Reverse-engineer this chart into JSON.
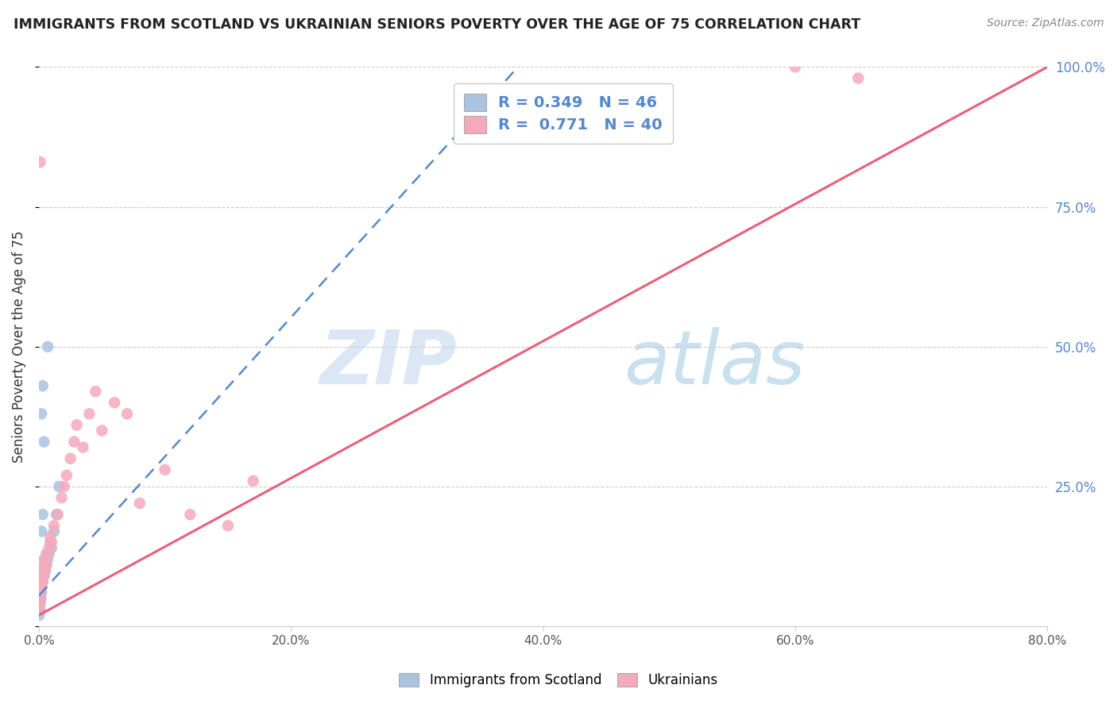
{
  "title": "IMMIGRANTS FROM SCOTLAND VS UKRAINIAN SENIORS POVERTY OVER THE AGE OF 75 CORRELATION CHART",
  "source": "Source: ZipAtlas.com",
  "ylabel": "Seniors Poverty Over the Age of 75",
  "xlim": [
    0,
    0.8
  ],
  "ylim": [
    0,
    1.0
  ],
  "xticks": [
    0.0,
    0.2,
    0.4,
    0.6,
    0.8
  ],
  "xtick_labels": [
    "0.0%",
    "20.0%",
    "40.0%",
    "60.0%",
    "80.0%"
  ],
  "yticks": [
    0.0,
    0.25,
    0.5,
    0.75,
    1.0
  ],
  "ytick_labels": [
    "",
    "25.0%",
    "50.0%",
    "75.0%",
    "100.0%"
  ],
  "blue_color": "#aac4e0",
  "pink_color": "#f5aabb",
  "blue_line_color": "#5588cc",
  "pink_line_color": "#e8607a",
  "watermark_zip": "ZIP",
  "watermark_atlas": "atlas",
  "legend_entries": [
    "R = 0.349   N = 46",
    "R =  0.771   N = 40"
  ],
  "legend_labels": [
    "Immigrants from Scotland",
    "Ukrainians"
  ],
  "scot_x": [
    0.0002,
    0.0003,
    0.0005,
    0.0005,
    0.0007,
    0.0008,
    0.001,
    0.001,
    0.001,
    0.0012,
    0.0013,
    0.0015,
    0.0015,
    0.0017,
    0.0018,
    0.002,
    0.002,
    0.002,
    0.0022,
    0.0022,
    0.0025,
    0.0025,
    0.003,
    0.003,
    0.0032,
    0.0035,
    0.004,
    0.004,
    0.0045,
    0.005,
    0.005,
    0.006,
    0.006,
    0.007,
    0.008,
    0.009,
    0.01,
    0.012,
    0.014,
    0.016,
    0.002,
    0.003,
    0.004,
    0.007,
    0.002,
    0.003
  ],
  "scot_y": [
    0.02,
    0.03,
    0.04,
    0.05,
    0.03,
    0.04,
    0.04,
    0.05,
    0.06,
    0.05,
    0.06,
    0.05,
    0.07,
    0.06,
    0.07,
    0.06,
    0.07,
    0.08,
    0.07,
    0.08,
    0.08,
    0.09,
    0.08,
    0.09,
    0.1,
    0.09,
    0.09,
    0.1,
    0.11,
    0.1,
    0.12,
    0.11,
    0.13,
    0.12,
    0.13,
    0.15,
    0.14,
    0.17,
    0.2,
    0.25,
    0.17,
    0.2,
    0.33,
    0.5,
    0.38,
    0.43
  ],
  "ukr_x": [
    0.0003,
    0.0005,
    0.0007,
    0.001,
    0.001,
    0.0012,
    0.0015,
    0.002,
    0.002,
    0.003,
    0.003,
    0.004,
    0.004,
    0.005,
    0.006,
    0.007,
    0.008,
    0.009,
    0.01,
    0.012,
    0.015,
    0.018,
    0.02,
    0.022,
    0.025,
    0.028,
    0.03,
    0.035,
    0.04,
    0.045,
    0.05,
    0.06,
    0.07,
    0.08,
    0.1,
    0.12,
    0.15,
    0.17,
    0.6,
    0.65
  ],
  "ukr_y": [
    0.03,
    0.04,
    0.05,
    0.06,
    0.83,
    0.07,
    0.08,
    0.07,
    0.09,
    0.08,
    0.1,
    0.09,
    0.12,
    0.1,
    0.11,
    0.13,
    0.14,
    0.16,
    0.15,
    0.18,
    0.2,
    0.23,
    0.25,
    0.27,
    0.3,
    0.33,
    0.36,
    0.32,
    0.38,
    0.42,
    0.35,
    0.4,
    0.38,
    0.22,
    0.28,
    0.2,
    0.18,
    0.26,
    1.0,
    0.98
  ],
  "blue_trendline_x": [
    0.0,
    0.38
  ],
  "blue_trendline_y": [
    0.055,
    1.0
  ],
  "pink_trendline_x": [
    0.0,
    0.8
  ],
  "pink_trendline_y": [
    0.02,
    1.0
  ]
}
